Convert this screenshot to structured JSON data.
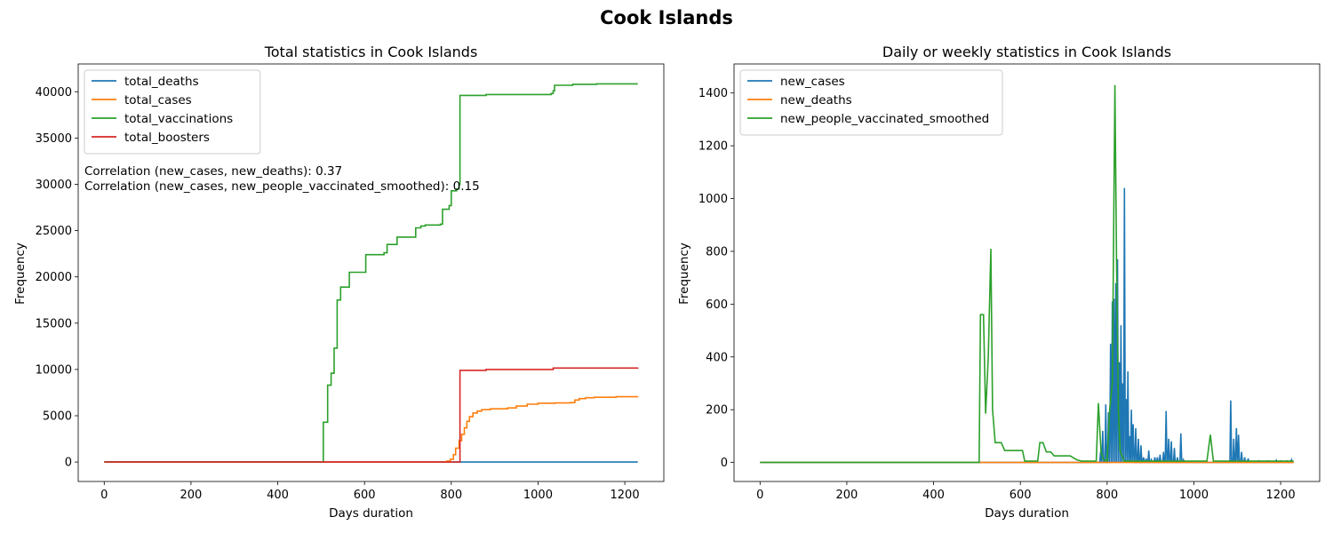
{
  "figure": {
    "suptitle": "Cook Islands"
  },
  "chart_data": [
    {
      "type": "line",
      "title": "Total statistics in Cook Islands",
      "xlabel": "Days duration",
      "ylabel": "Frequency",
      "xlim": [
        -60,
        1290
      ],
      "ylim": [
        -2100,
        43000
      ],
      "xticks": [
        0,
        200,
        400,
        600,
        800,
        1000,
        1200
      ],
      "yticks": [
        0,
        5000,
        10000,
        15000,
        20000,
        25000,
        30000,
        35000,
        40000
      ],
      "legend_position": "upper left",
      "annotations": [
        "Correlation (new_cases, new_deaths): 0.37",
        "Correlation (new_cases, new_people_vaccinated_smoothed): 0.15"
      ],
      "series": [
        {
          "name": "total_deaths",
          "color": "#1f77b4",
          "step": true,
          "points": [
            [
              0,
              0
            ],
            [
              1230,
              0
            ]
          ]
        },
        {
          "name": "total_cases",
          "color": "#ff7f0e",
          "step": true,
          "points": [
            [
              0,
              0
            ],
            [
              780,
              0
            ],
            [
              790,
              100
            ],
            [
              798,
              300
            ],
            [
              805,
              800
            ],
            [
              810,
              1500
            ],
            [
              818,
              2300
            ],
            [
              824,
              3000
            ],
            [
              830,
              3700
            ],
            [
              836,
              4400
            ],
            [
              842,
              4900
            ],
            [
              850,
              5300
            ],
            [
              860,
              5500
            ],
            [
              870,
              5650
            ],
            [
              890,
              5750
            ],
            [
              930,
              5850
            ],
            [
              950,
              6050
            ],
            [
              975,
              6250
            ],
            [
              1000,
              6350
            ],
            [
              1040,
              6380
            ],
            [
              1075,
              6420
            ],
            [
              1085,
              6700
            ],
            [
              1095,
              6850
            ],
            [
              1110,
              6950
            ],
            [
              1130,
              7000
            ],
            [
              1180,
              7050
            ],
            [
              1230,
              7080
            ]
          ]
        },
        {
          "name": "total_vaccinations",
          "color": "#2ca02c",
          "step": true,
          "points": [
            [
              0,
              0
            ],
            [
              505,
              0
            ],
            [
              505,
              4300
            ],
            [
              515,
              8300
            ],
            [
              523,
              9600
            ],
            [
              530,
              12300
            ],
            [
              537,
              17500
            ],
            [
              545,
              18900
            ],
            [
              565,
              20500
            ],
            [
              603,
              22400
            ],
            [
              645,
              22600
            ],
            [
              652,
              23500
            ],
            [
              675,
              24300
            ],
            [
              718,
              25300
            ],
            [
              730,
              25500
            ],
            [
              740,
              25600
            ],
            [
              775,
              25700
            ],
            [
              780,
              27300
            ],
            [
              795,
              27700
            ],
            [
              800,
              29300
            ],
            [
              812,
              29500
            ],
            [
              818,
              30000
            ],
            [
              820,
              39600
            ],
            [
              880,
              39700
            ],
            [
              1030,
              39800
            ],
            [
              1035,
              40100
            ],
            [
              1038,
              40700
            ],
            [
              1080,
              40800
            ],
            [
              1135,
              40850
            ],
            [
              1230,
              40850
            ]
          ]
        },
        {
          "name": "total_boosters",
          "color": "#d62728",
          "step": true,
          "points": [
            [
              0,
              0
            ],
            [
              820,
              0
            ],
            [
              820,
              9900
            ],
            [
              880,
              10000
            ],
            [
              1035,
              10150
            ],
            [
              1230,
              10200
            ]
          ]
        }
      ]
    },
    {
      "type": "line",
      "title": "Daily or weekly statistics in Cook Islands",
      "xlabel": "Days duration",
      "ylabel": "Frequency",
      "xlim": [
        -60,
        1290
      ],
      "ylim": [
        -72,
        1510
      ],
      "xticks": [
        0,
        200,
        400,
        600,
        800,
        1000,
        1200
      ],
      "yticks": [
        0,
        200,
        400,
        600,
        800,
        1000,
        1200,
        1400
      ],
      "legend_position": "upper left",
      "series": [
        {
          "name": "new_cases",
          "color": "#1f77b4",
          "step": false,
          "spikes": [
            [
              785,
              40
            ],
            [
              790,
              120
            ],
            [
              797,
              220
            ],
            [
              803,
              190
            ],
            [
              808,
              450
            ],
            [
              812,
              610
            ],
            [
              816,
              620
            ],
            [
              820,
              680
            ],
            [
              824,
              770
            ],
            [
              828,
              380
            ],
            [
              832,
              520
            ],
            [
              836,
              300
            ],
            [
              840,
              1040
            ],
            [
              844,
              240
            ],
            [
              848,
              345
            ],
            [
              852,
              100
            ],
            [
              856,
              200
            ],
            [
              860,
              145
            ],
            [
              866,
              130
            ],
            [
              872,
              90
            ],
            [
              878,
              65
            ],
            [
              884,
              20
            ],
            [
              890,
              15
            ],
            [
              896,
              45
            ],
            [
              902,
              10
            ],
            [
              910,
              20
            ],
            [
              916,
              20
            ],
            [
              922,
              30
            ],
            [
              930,
              40
            ],
            [
              936,
              195
            ],
            [
              942,
              90
            ],
            [
              948,
              80
            ],
            [
              955,
              55
            ],
            [
              962,
              20
            ],
            [
              970,
              110
            ],
            [
              976,
              10
            ],
            [
              1085,
              235
            ],
            [
              1092,
              90
            ],
            [
              1098,
              130
            ],
            [
              1103,
              105
            ],
            [
              1110,
              40
            ],
            [
              1117,
              20
            ],
            [
              1125,
              15
            ],
            [
              1150,
              5
            ],
            [
              1170,
              5
            ],
            [
              1190,
              8
            ],
            [
              1200,
              5
            ],
            [
              1215,
              5
            ],
            [
              1225,
              10
            ]
          ]
        },
        {
          "name": "new_deaths",
          "color": "#ff7f0e",
          "step": false,
          "points": [
            [
              0,
              0
            ],
            [
              1230,
              0
            ]
          ]
        },
        {
          "name": "new_people_vaccinated_smoothed",
          "color": "#2ca02c",
          "step": false,
          "points": [
            [
              0,
              0
            ],
            [
              505,
              0
            ],
            [
              508,
              560
            ],
            [
              515,
              560
            ],
            [
              520,
              185
            ],
            [
              526,
              400
            ],
            [
              532,
              810
            ],
            [
              536,
              200
            ],
            [
              542,
              75
            ],
            [
              556,
              75
            ],
            [
              564,
              45
            ],
            [
              605,
              45
            ],
            [
              610,
              5
            ],
            [
              640,
              5
            ],
            [
              645,
              75
            ],
            [
              652,
              75
            ],
            [
              660,
              40
            ],
            [
              670,
              40
            ],
            [
              678,
              25
            ],
            [
              715,
              25
            ],
            [
              730,
              10
            ],
            [
              742,
              5
            ],
            [
              775,
              5
            ],
            [
              780,
              225
            ],
            [
              786,
              40
            ],
            [
              792,
              10
            ],
            [
              800,
              5
            ],
            [
              806,
              200
            ],
            [
              812,
              300
            ],
            [
              818,
              1430
            ],
            [
              822,
              740
            ],
            [
              826,
              200
            ],
            [
              830,
              40
            ],
            [
              840,
              5
            ],
            [
              1030,
              5
            ],
            [
              1038,
              105
            ],
            [
              1045,
              5
            ],
            [
              1230,
              5
            ]
          ]
        }
      ]
    }
  ]
}
